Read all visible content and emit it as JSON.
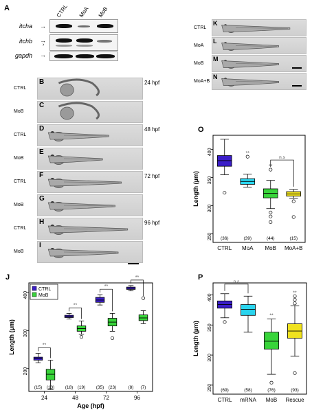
{
  "panelA": {
    "letter": "A",
    "lanes": [
      "CTRL",
      "MoA",
      "MoB"
    ],
    "genes": [
      "itcha",
      "itchb",
      "gapdh"
    ]
  },
  "panelsBI": {
    "rows": [
      {
        "letter": "B",
        "label": "CTRL",
        "stage": "24 hpf"
      },
      {
        "letter": "C",
        "label": "MoB",
        "stage": ""
      },
      {
        "letter": "D",
        "label": "CTRL",
        "stage": "48 hpf"
      },
      {
        "letter": "E",
        "label": "MoB",
        "stage": ""
      },
      {
        "letter": "F",
        "label": "CTRL",
        "stage": "72 hpf"
      },
      {
        "letter": "G",
        "label": "MoB",
        "stage": ""
      },
      {
        "letter": "H",
        "label": "CTRL",
        "stage": "96 hpf"
      },
      {
        "letter": "I",
        "label": "MoB",
        "stage": ""
      }
    ]
  },
  "panelsKN": {
    "rows": [
      {
        "letter": "K",
        "label": "CTRL"
      },
      {
        "letter": "L",
        "label": "MoA"
      },
      {
        "letter": "M",
        "label": "MoB"
      },
      {
        "letter": "N",
        "label": "MoA+B"
      }
    ]
  },
  "chart_data": [
    {
      "panel": "O",
      "type": "box",
      "ylabel": "Length (µm)",
      "ylim": [
        235,
        425
      ],
      "yticks": [
        250,
        300,
        350,
        400
      ],
      "categories": [
        "CTRL",
        "MoA",
        "MoB",
        "MoA+B"
      ],
      "n": [
        "(36)",
        "(39)",
        "(44)",
        "(15)"
      ],
      "colors": [
        "#3b1ec8",
        "#2ad4ee",
        "#38d43a",
        "#f0e21e"
      ],
      "boxes": [
        {
          "min": 355,
          "q1": 370,
          "median": 380,
          "q3": 389,
          "max": 418,
          "outliers": [
            323
          ]
        },
        {
          "min": 333,
          "q1": 338,
          "median": 343,
          "q3": 348,
          "max": 356,
          "outliers": [
            387
          ]
        },
        {
          "min": 295,
          "q1": 314,
          "median": 322,
          "q3": 330,
          "max": 345,
          "outliers": [
            364,
            288,
            281,
            271
          ]
        },
        {
          "min": 313,
          "q1": 317,
          "median": 321,
          "q3": 325,
          "max": 329,
          "outliers": [
            308,
            280
          ]
        }
      ],
      "significance": [
        "",
        "**",
        "**",
        ""
      ],
      "brackets": [
        {
          "from": 2,
          "to": 3,
          "label": "n.s"
        }
      ]
    },
    {
      "panel": "J",
      "type": "grouped-box",
      "xlabel": "Age (hpf)",
      "ylabel": "Length (µm)",
      "ylim": [
        140,
        425
      ],
      "yticks": [
        200,
        300,
        400
      ],
      "categories": [
        "24",
        "48",
        "72",
        "96"
      ],
      "legend": [
        {
          "name": "CTRL",
          "color": "#3b1ec8"
        },
        {
          "name": "MoB",
          "color": "#38d43a"
        }
      ],
      "legend_position": "top-left",
      "n": [
        "(15)",
        "(13)",
        "(18)",
        "(19)",
        "(35)",
        "(23)",
        "(8)",
        "(7)"
      ],
      "series": [
        {
          "name": "CTRL",
          "boxes": [
            {
              "min": 215,
              "q1": 222,
              "median": 226,
              "q3": 230,
              "max": 240,
              "outliers": []
            },
            {
              "min": 330,
              "q1": 334,
              "median": 337,
              "q3": 340,
              "max": 345,
              "outliers": []
            },
            {
              "min": 367,
              "q1": 374,
              "median": 380,
              "q3": 387,
              "max": 394,
              "outliers": []
            },
            {
              "min": 404,
              "q1": 408,
              "median": 411,
              "q3": 414,
              "max": 418,
              "outliers": []
            }
          ]
        },
        {
          "name": "MoB",
          "boxes": [
            {
              "min": 145,
              "q1": 170,
              "median": 185,
              "q3": 198,
              "max": 222,
              "outliers": []
            },
            {
              "min": 290,
              "q1": 298,
              "median": 305,
              "q3": 312,
              "max": 325,
              "outliers": [
                283
              ]
            },
            {
              "min": 298,
              "q1": 312,
              "median": 322,
              "q3": 332,
              "max": 345,
              "outliers": [
                280
              ]
            },
            {
              "min": 318,
              "q1": 326,
              "median": 333,
              "q3": 341,
              "max": 352,
              "outliers": [
                385
              ]
            }
          ]
        }
      ],
      "brackets": [
        {
          "group": 0,
          "label": "**"
        },
        {
          "group": 1,
          "label": "**"
        },
        {
          "group": 2,
          "label": "**"
        },
        {
          "group": 3,
          "label": "**"
        }
      ]
    },
    {
      "panel": "P",
      "type": "box",
      "ylabel": "Length (µm)",
      "ylim": [
        235,
        420
      ],
      "yticks": [
        250,
        300,
        350,
        400
      ],
      "categories": [
        "CTRL",
        "mRNA",
        "MoB",
        "Rescue"
      ],
      "n": [
        "(69)",
        "(58)",
        "(76)",
        "(93)"
      ],
      "colors": [
        "#3b1ec8",
        "#2ad4ee",
        "#38d43a",
        "#f0e21e"
      ],
      "boxes": [
        {
          "min": 362,
          "q1": 378,
          "median": 384,
          "q3": 390,
          "max": 402,
          "outliers": [
            355
          ]
        },
        {
          "min": 338,
          "q1": 366,
          "median": 376,
          "q3": 384,
          "max": 398,
          "outliers": []
        },
        {
          "min": 268,
          "q1": 310,
          "median": 323,
          "q3": 338,
          "max": 360,
          "outliers": [
            254
          ]
        },
        {
          "min": 298,
          "q1": 328,
          "median": 340,
          "q3": 352,
          "max": 382,
          "outliers": [
            270,
            386,
            392,
            398
          ]
        }
      ],
      "significance": [
        "",
        "",
        "**",
        "**"
      ],
      "brackets": [
        {
          "from": 0,
          "to": 1,
          "label": "n.s"
        }
      ]
    }
  ]
}
